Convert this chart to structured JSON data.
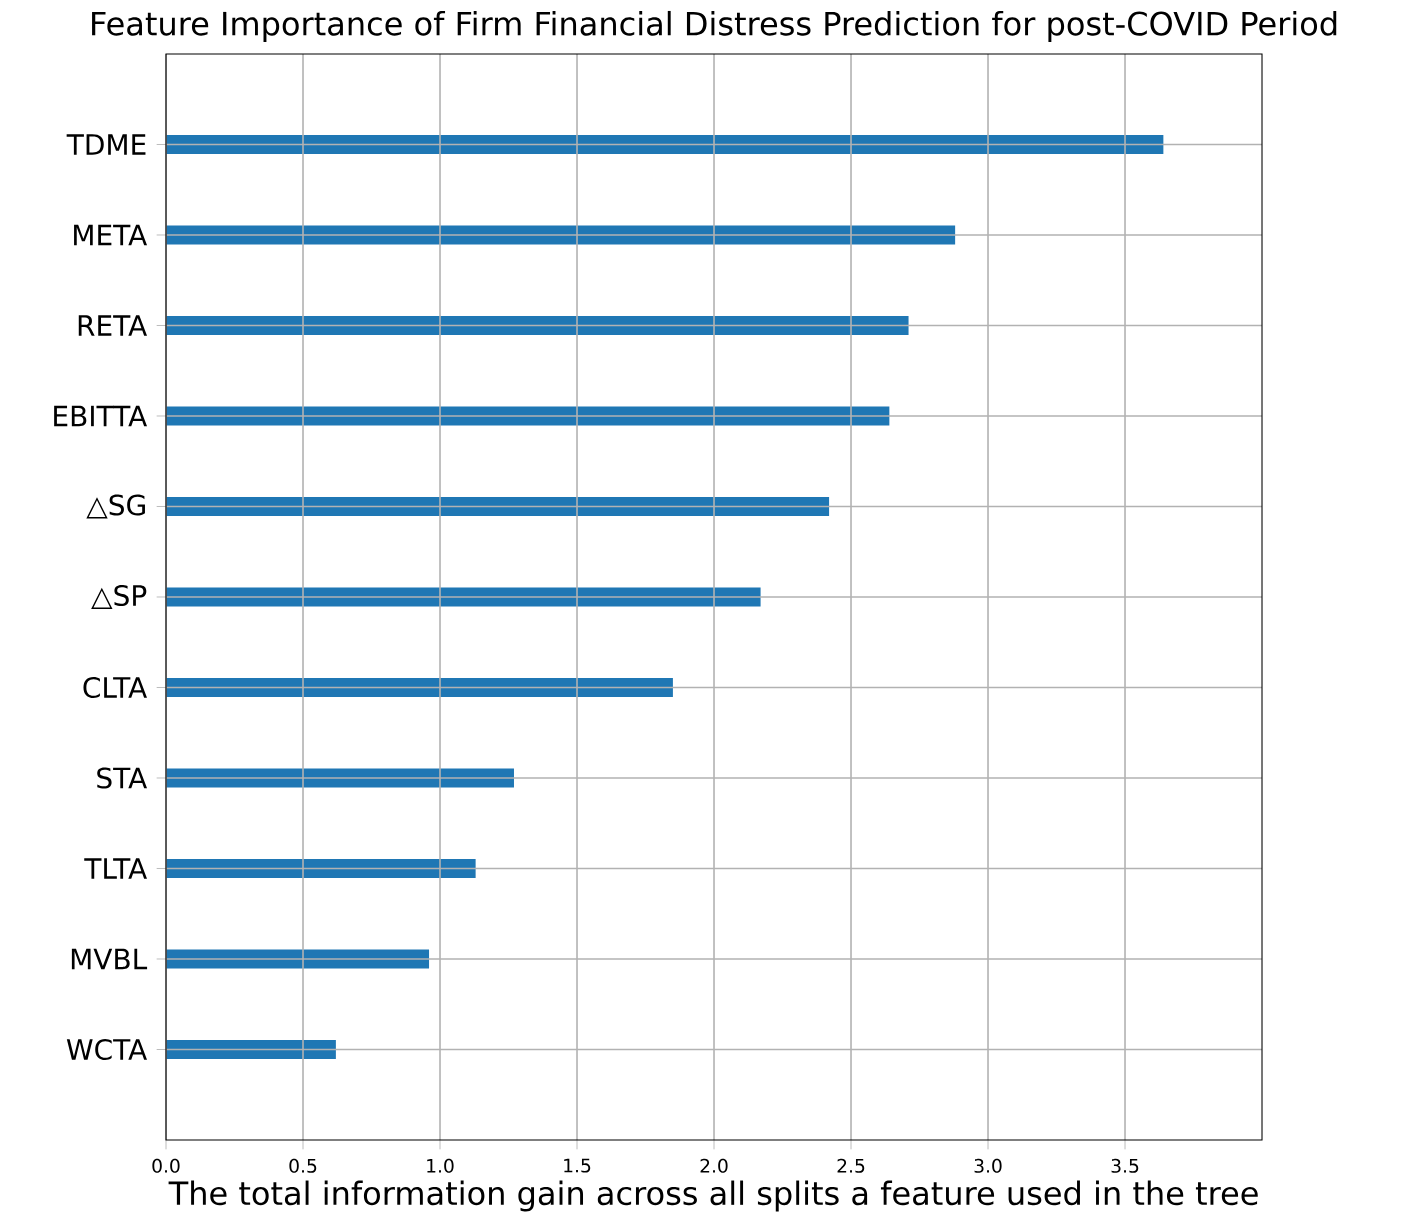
{
  "chart_data": {
    "type": "bar",
    "orientation": "horizontal",
    "title": "Feature Importance of Firm Financial Distress Prediction for post-COVID Period",
    "xlabel": "The total information gain across all splits a feature used in the tree",
    "categories": [
      "TDME",
      "META",
      "RETA",
      "EBITTA",
      "△SG",
      "△SP",
      "CLTA",
      "STA",
      "TLTA",
      "MVBL",
      "WCTA"
    ],
    "values": [
      3.64,
      2.88,
      2.71,
      2.64,
      2.42,
      2.17,
      1.85,
      1.27,
      1.13,
      0.96,
      0.62
    ],
    "color": "#1f77b4",
    "xlim": [
      0,
      4
    ],
    "xticks": [
      {
        "value": 0,
        "label": "0.0"
      },
      {
        "value": 0.5,
        "label": "0.5"
      },
      {
        "value": 1,
        "label": "1.0"
      },
      {
        "value": 1.5,
        "label": "1.5"
      },
      {
        "value": 2,
        "label": "2.0"
      },
      {
        "value": 2.5,
        "label": "2.5"
      },
      {
        "value": 3,
        "label": "3.0"
      },
      {
        "value": 3.5,
        "label": "3.5"
      }
    ],
    "grid": true
  }
}
